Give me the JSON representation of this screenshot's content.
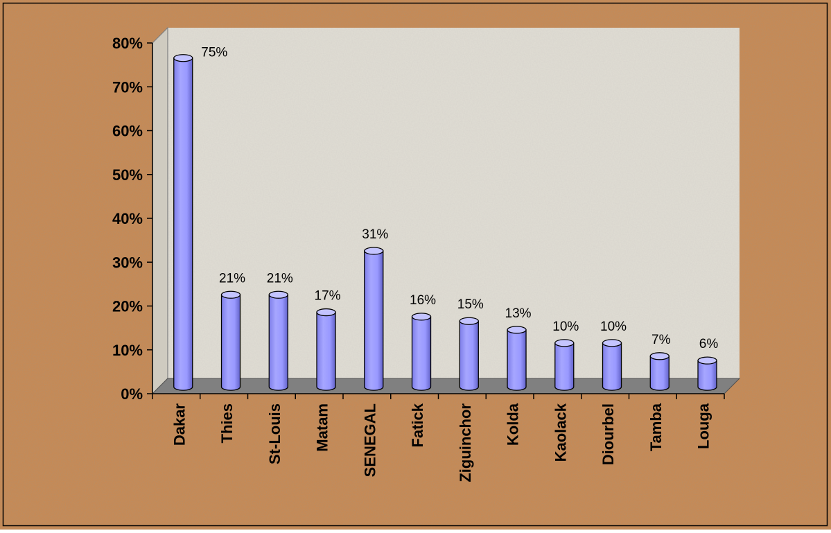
{
  "chart_data": {
    "type": "bar",
    "style": "3d-cylinder",
    "categories": [
      "Dakar",
      "Thies",
      "St-Louis",
      "Matam",
      "SENEGAL",
      "Fatick",
      "Ziguinchor",
      "Kolda",
      "Kaolack",
      "Diourbel",
      "Tamba",
      "Louga"
    ],
    "values": [
      75,
      21,
      21,
      17,
      31,
      16,
      15,
      13,
      10,
      10,
      7,
      6
    ],
    "data_labels": [
      "75%",
      "21%",
      "21%",
      "17%",
      "31%",
      "16%",
      "15%",
      "13%",
      "10%",
      "10%",
      "7%",
      "6%"
    ],
    "y_ticks": [
      "0%",
      "10%",
      "20%",
      "30%",
      "40%",
      "50%",
      "60%",
      "70%",
      "80%"
    ],
    "ylim": [
      0,
      80
    ],
    "y_unit": "%",
    "legend": "none",
    "grid": false,
    "colors": {
      "bar_front": "#9999ff",
      "bar_top": "#c4c4ff",
      "bar_shade": "#5a5ab8",
      "outline": "#000000",
      "plot_wall": "#dedbd2",
      "plot_floor": "#808080",
      "frame_border": "#000000"
    }
  }
}
